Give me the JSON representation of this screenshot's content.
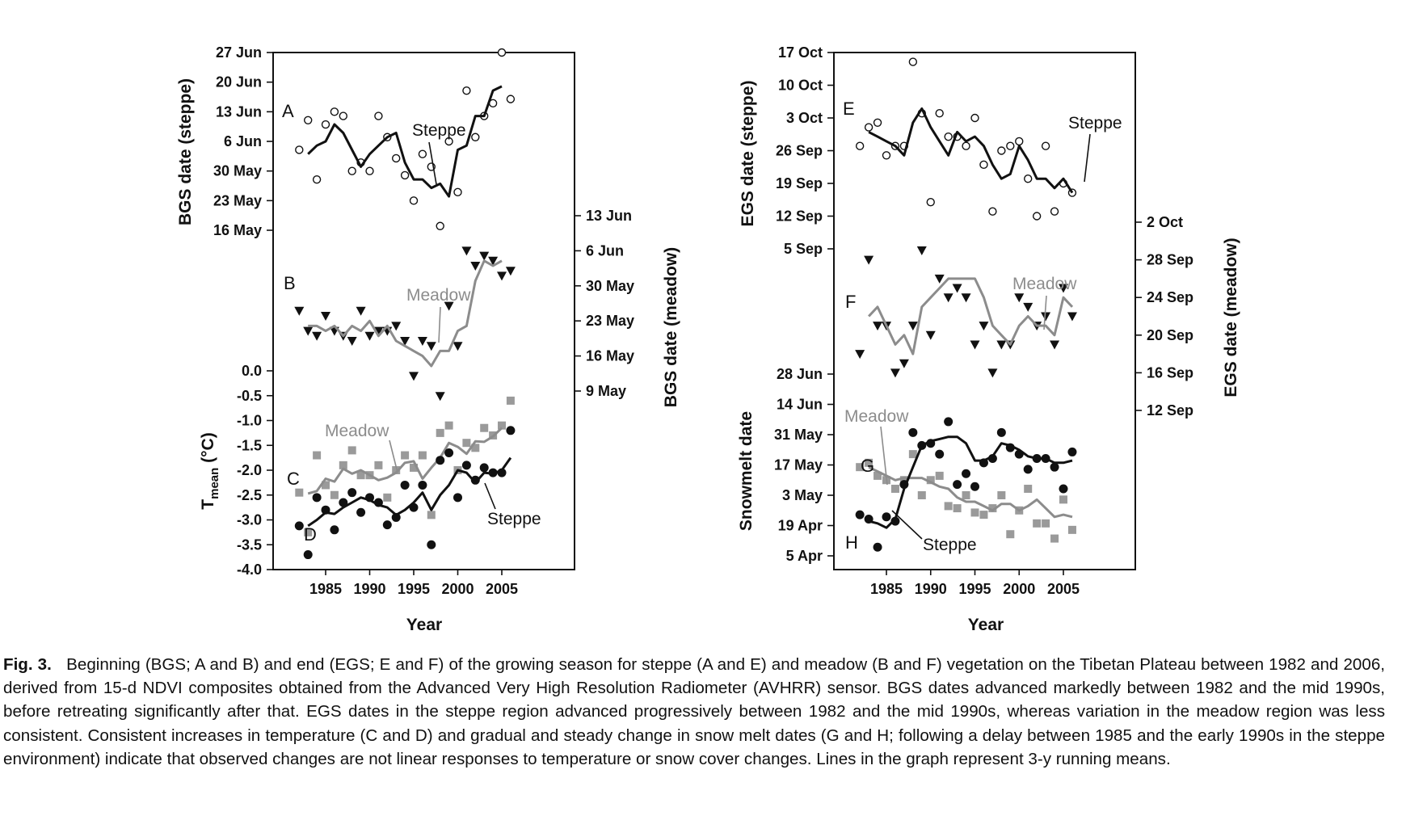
{
  "colors": {
    "steppe": "#111111",
    "meadow": "#8c8c8c",
    "axis": "#111111"
  },
  "left_panel": {
    "x_axis": {
      "label": "Year",
      "ticks": [
        1985,
        1990,
        1995,
        2000,
        2005
      ]
    },
    "axes": {
      "bgs_steppe": {
        "label": "BGS date (steppe)",
        "ticks": [
          "16 May",
          "23 May",
          "30 May",
          "6 Jun",
          "13 Jun",
          "20 Jun",
          "27 Jun"
        ]
      },
      "bgs_meadow": {
        "label": "BGS date (meadow)",
        "ticks": [
          "9 May",
          "16 May",
          "23 May",
          "30 May",
          "6 Jun",
          "13 Jun"
        ]
      },
      "tmean": {
        "label_main": "T",
        "label_sub": "mean",
        "label_unit": " (°C)",
        "ticks": [
          "-4.0",
          "-3.5",
          "-3.0",
          "-2.5",
          "-2.0",
          "-1.5",
          "-1.0",
          "-0.5",
          "0.0"
        ]
      }
    },
    "panel_labels": {
      "A": "A",
      "B": "B",
      "C": "C",
      "D": "D"
    },
    "series_labels": {
      "steppe_A": "Steppe",
      "meadow_B": "Meadow",
      "meadow_C": "Meadow",
      "steppe_D": "Steppe"
    }
  },
  "right_panel": {
    "x_axis": {
      "label": "Year",
      "ticks": [
        1985,
        1990,
        1995,
        2000,
        2005
      ]
    },
    "axes": {
      "egs_steppe": {
        "label": "EGS date (steppe)",
        "ticks": [
          "5 Sep",
          "12 Sep",
          "19 Sep",
          "26 Sep",
          "3 Oct",
          "10 Oct",
          "17 Oct"
        ]
      },
      "egs_meadow": {
        "label": "EGS date (meadow)",
        "ticks": [
          "12 Sep",
          "16 Sep",
          "20 Sep",
          "24 Sep",
          "28 Sep",
          "2 Oct"
        ]
      },
      "snowmelt": {
        "label": "Snowmelt date",
        "ticks": [
          "5 Apr",
          "19 Apr",
          "3 May",
          "17 May",
          "31 May",
          "14 Jun",
          "28 Jun"
        ]
      }
    },
    "panel_labels": {
      "E": "E",
      "F": "F",
      "G": "G",
      "H": "H"
    },
    "series_labels": {
      "steppe_E": "Steppe",
      "meadow_F": "Meadow",
      "meadow_G": "Meadow",
      "steppe_H": "Steppe"
    }
  },
  "chart_data": [
    {
      "panel": "A",
      "type": "scatter",
      "title": "",
      "xlabel": "Year",
      "ylabel": "BGS date (steppe)",
      "unit": "day of year",
      "ylim": [
        130,
        182
      ],
      "years": [
        1982,
        1983,
        1984,
        1985,
        1986,
        1987,
        1988,
        1989,
        1990,
        1991,
        1992,
        1993,
        1994,
        1995,
        1996,
        1997,
        1998,
        1999,
        2000,
        2001,
        2002,
        2003,
        2004,
        2005,
        2006
      ],
      "points": [
        155,
        162,
        148,
        161,
        164,
        163,
        150,
        152,
        150,
        163,
        158,
        153,
        149,
        143,
        154,
        151,
        137,
        157,
        145,
        169,
        158,
        163,
        166,
        178,
        167
      ],
      "running_mean": [
        null,
        154,
        156,
        157,
        161,
        159,
        155,
        151,
        154,
        156,
        158,
        159,
        152,
        148,
        148,
        146,
        147,
        144,
        155,
        156,
        163,
        163,
        169,
        170,
        null
      ]
    },
    {
      "panel": "B",
      "type": "scatter",
      "title": "",
      "xlabel": "Year",
      "ylabel": "BGS date (meadow)",
      "unit": "day of year",
      "ylim": [
        129,
        165
      ],
      "points": [
        145,
        141,
        140,
        144,
        141,
        140,
        139,
        145,
        140,
        141,
        141,
        142,
        139,
        132,
        139,
        138,
        128,
        146,
        138,
        157,
        154,
        156,
        155,
        152,
        153
      ],
      "running_mean": [
        null,
        142,
        142,
        141,
        142,
        140,
        142,
        141,
        143,
        140,
        142,
        139,
        138,
        137,
        136,
        134,
        137,
        137,
        141,
        142,
        151,
        155,
        154,
        155,
        null
      ]
    },
    {
      "panel": "C",
      "type": "scatter",
      "title": "",
      "xlabel": "Year",
      "ylabel": "Tmean (°C)",
      "series": "Meadow",
      "ylim": [
        -4.0,
        0.0
      ],
      "points": [
        -2.45,
        -3.25,
        -1.7,
        -2.3,
        -2.5,
        -1.9,
        -1.6,
        -2.1,
        -2.1,
        -1.9,
        -2.55,
        -2.0,
        -1.7,
        -1.95,
        -1.7,
        -2.9,
        -1.25,
        -1.1,
        -2.0,
        -1.45,
        -1.55,
        -1.15,
        -1.3,
        -1.1,
        -0.6
      ],
      "running_mean": [
        null,
        -2.47,
        -2.42,
        -2.17,
        -2.23,
        -1.97,
        -2.07,
        -2.0,
        -2.1,
        -2.2,
        -2.15,
        -2.05,
        -1.85,
        -1.82,
        -2.17,
        -1.95,
        -1.75,
        -1.45,
        -1.53,
        -1.67,
        -1.42,
        -1.43,
        -1.32,
        -1.15,
        null
      ]
    },
    {
      "panel": "D",
      "type": "scatter",
      "title": "",
      "xlabel": "Year",
      "ylabel": "Tmean (°C)",
      "series": "Steppe",
      "ylim": [
        -4.0,
        0.0
      ],
      "points": [
        -3.12,
        -3.7,
        -2.55,
        -2.8,
        -3.2,
        -2.65,
        -2.45,
        -2.85,
        -2.55,
        -2.65,
        -3.1,
        -2.95,
        -2.3,
        -2.75,
        -2.3,
        -3.5,
        -1.8,
        -1.65,
        -2.55,
        -1.9,
        -2.2,
        -1.95,
        -2.05,
        -2.05,
        -1.2
      ],
      "running_mean": [
        null,
        -3.12,
        -3.0,
        -2.85,
        -2.88,
        -2.75,
        -2.65,
        -2.55,
        -2.6,
        -2.7,
        -2.75,
        -2.9,
        -2.8,
        -2.65,
        -2.45,
        -2.8,
        -2.5,
        -2.3,
        -2.0,
        -2.05,
        -2.25,
        -2.05,
        -2.07,
        -2.0,
        -1.75
      ]
    },
    {
      "panel": "E",
      "type": "scatter",
      "title": "",
      "xlabel": "Year",
      "ylabel": "EGS date (steppe)",
      "unit": "day of year",
      "ylim": [
        248,
        290
      ],
      "years": [
        1982,
        1983,
        1984,
        1985,
        1986,
        1987,
        1988,
        1989,
        1990,
        1991,
        1992,
        1993,
        1994,
        1995,
        1996,
        1997,
        1998,
        1999,
        2000,
        2001,
        2002,
        2003,
        2004,
        2005,
        2006
      ],
      "points": [
        270,
        274,
        275,
        268,
        270,
        270,
        288,
        277,
        258,
        277,
        272,
        272,
        270,
        276,
        266,
        256,
        269,
        270,
        271,
        263,
        255,
        270,
        256,
        262,
        260
      ],
      "running_mean": [
        null,
        273,
        272,
        271,
        270,
        268,
        275,
        278,
        274,
        271,
        268,
        273,
        271,
        272,
        270,
        266,
        263,
        264,
        270,
        267,
        263,
        263,
        261,
        263,
        260
      ]
    },
    {
      "panel": "F",
      "type": "scatter",
      "title": "",
      "xlabel": "Year",
      "ylabel": "EGS date (meadow)",
      "unit": "day of year",
      "ylim": [
        255,
        276
      ],
      "points": [
        261,
        271,
        264,
        264,
        259,
        260,
        264,
        272,
        263,
        269,
        267,
        268,
        267,
        262,
        264,
        259,
        262,
        262,
        267,
        266,
        264,
        265,
        262,
        268,
        265
      ],
      "running_mean": [
        null,
        265,
        266,
        264,
        262,
        263,
        261,
        266,
        267,
        268,
        269,
        269,
        269,
        269,
        267,
        264,
        263,
        262,
        264,
        265,
        264,
        264,
        263,
        267,
        266
      ]
    },
    {
      "panel": "G",
      "type": "scatter",
      "title": "",
      "xlabel": "Year",
      "ylabel": "Snowmelt date",
      "series": "Meadow",
      "unit": "day of year",
      "ylim": [
        95,
        180
      ],
      "points": [
        136,
        138,
        132,
        130,
        126,
        130,
        142,
        123,
        130,
        132,
        118,
        117,
        123,
        115,
        114,
        117,
        123,
        105,
        116,
        126,
        110,
        110,
        103,
        121,
        107
      ],
      "running_mean": [
        null,
        136,
        134,
        132,
        130,
        131,
        131,
        131,
        129,
        127,
        126,
        122,
        120,
        120,
        118,
        116,
        119,
        119,
        116,
        118,
        121,
        117,
        113,
        114,
        113
      ]
    },
    {
      "panel": "H",
      "type": "scatter",
      "title": "",
      "xlabel": "Year",
      "ylabel": "Snowmelt date",
      "series": "Steppe",
      "unit": "day of year",
      "ylim": [
        95,
        180
      ],
      "points": [
        114,
        112,
        99,
        113,
        111,
        128,
        152,
        146,
        147,
        142,
        157,
        128,
        133,
        127,
        138,
        140,
        152,
        145,
        142,
        135,
        140,
        140,
        136,
        126,
        143
      ],
      "running_mean": [
        null,
        111,
        110,
        108,
        112,
        126,
        136,
        146,
        148,
        149,
        150,
        150,
        147,
        139,
        139,
        141,
        147,
        146,
        144,
        141,
        140,
        140,
        138,
        138,
        139
      ]
    }
  ],
  "caption": {
    "fig_label": "Fig. 3.",
    "text": "Beginning (BGS; A and B) and end (EGS; E and F) of the growing season for steppe (A and E) and meadow (B and F) vegetation on the Tibetan Plateau between 1982 and 2006, derived from 15-d NDVI composites obtained from the Advanced Very High Resolution Radiometer (AVHRR) sensor. BGS dates advanced markedly between 1982 and the mid 1990s, before retreating significantly after that. EGS dates in the steppe region advanced progressively between 1982 and the mid 1990s, whereas variation in the meadow region was less consistent. Consistent increases in temperature (C and D) and gradual and steady change in snow melt dates (G and H; following a delay between 1985 and the early 1990s in the steppe environment) indicate that observed changes are not linear responses to temperature or snow cover changes. Lines in the graph represent 3-y running means."
  }
}
